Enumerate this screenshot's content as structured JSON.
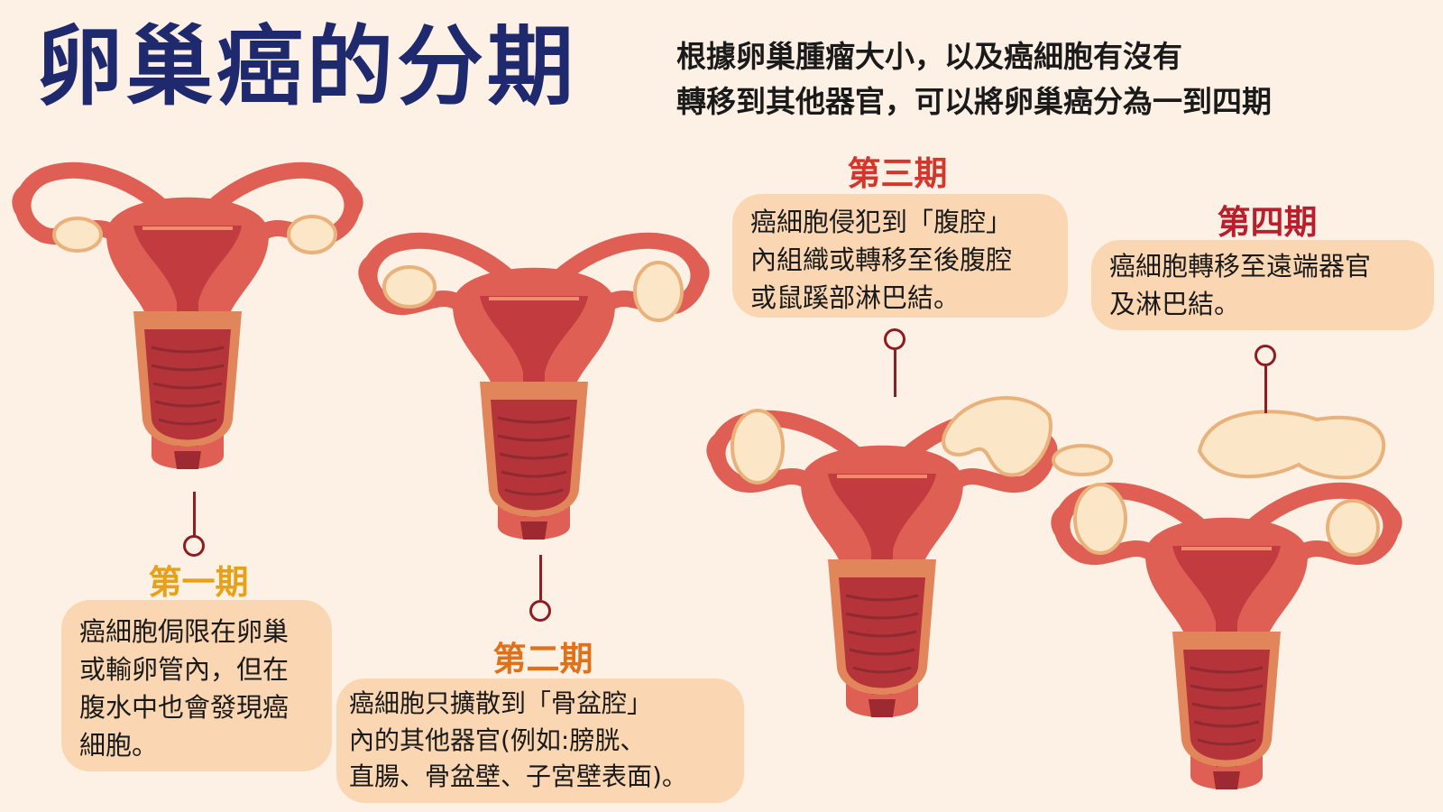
{
  "header": {
    "title": "卵巢癌的分期",
    "subtitle_lines": [
      "根據卵巢腫瘤大小，以及癌細胞有沒有",
      "轉移到其他器官，可以將卵巢癌分為一到四期"
    ]
  },
  "stages": [
    {
      "label": "第一期",
      "color": "#e8a016",
      "lines": [
        "癌細胞侷限在卵巢",
        "或輸卵管內，但在",
        "腹水中也會發現癌",
        "細胞。"
      ]
    },
    {
      "label": "第二期",
      "color": "#e0701a",
      "lines": [
        "癌細胞只擴散到「骨盆腔」",
        "內的其他器官(例如:膀胱、",
        "直腸、骨盆壁、子宮壁表面)。"
      ]
    },
    {
      "label": "第三期",
      "color": "#d4362b",
      "lines": [
        "癌細胞侵犯到「腹腔」",
        "內組織或轉移至後腹腔",
        "或鼠蹊部淋巴結。"
      ]
    },
    {
      "label": "第四期",
      "color": "#b81e2c",
      "lines": [
        "癌細胞轉移至遠端器官",
        "及淋巴結。"
      ]
    }
  ],
  "colors": {
    "title": "#1f2a6e",
    "bubble": "#fad7b2",
    "connector": "#8e1d22",
    "uterus_outer": "#df5f55",
    "uterus_inner": "#c23b3f",
    "cervix": "#b4343a",
    "tumor": "#fbe6c8"
  }
}
